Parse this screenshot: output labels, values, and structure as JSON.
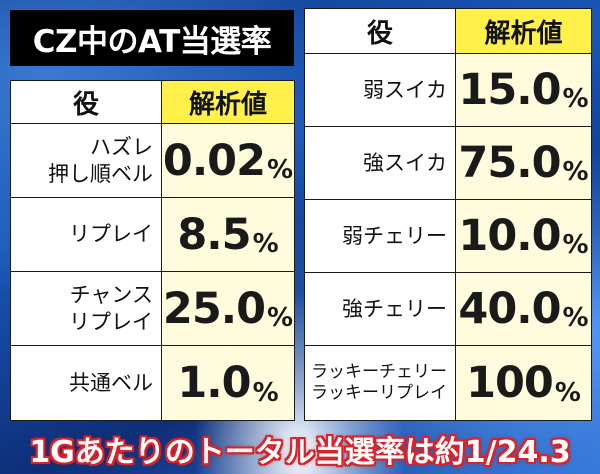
{
  "left_table": {
    "title": "CZ中のAT当選率",
    "headers": {
      "role": "役",
      "value": "解析値"
    },
    "rows": [
      {
        "label": "ハズレ\n押し順ベル",
        "value": "0.02",
        "unit": "%"
      },
      {
        "label": "リプレイ",
        "value": "8.5",
        "unit": "%"
      },
      {
        "label": "チャンス\nリプレイ",
        "value": "25.0",
        "unit": "%"
      },
      {
        "label": "共通ベル",
        "value": "1.0",
        "unit": "%"
      }
    ]
  },
  "right_table": {
    "headers": {
      "role": "役",
      "value": "解析値"
    },
    "rows": [
      {
        "label": "弱スイカ",
        "value": "15.0",
        "unit": "%"
      },
      {
        "label": "強スイカ",
        "value": "75.0",
        "unit": "%"
      },
      {
        "label": "弱チェリー",
        "value": "10.0",
        "unit": "%"
      },
      {
        "label": "強チェリー",
        "value": "40.0",
        "unit": "%"
      },
      {
        "label": "ラッキーチェリー\nラッキーリプレイ",
        "value": "100",
        "unit": "%"
      }
    ]
  },
  "footer": {
    "text": "1Gあたりのトータル当選率は約1/24.3"
  }
}
